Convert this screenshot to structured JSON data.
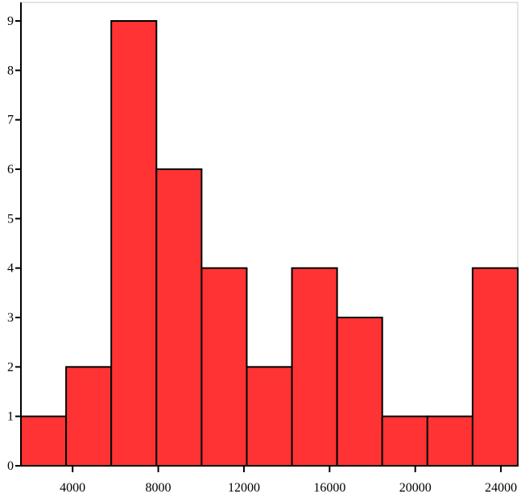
{
  "chart_data": {
    "type": "bar",
    "title": "",
    "xlabel": "",
    "ylabel": "",
    "bar_color": "#ff3333",
    "bar_stroke": "#000000",
    "bins": [
      {
        "start": 1587,
        "end": 3696,
        "count": 1
      },
      {
        "start": 3696,
        "end": 5805,
        "count": 2
      },
      {
        "start": 5805,
        "end": 7914,
        "count": 9
      },
      {
        "start": 7914,
        "end": 10023,
        "count": 6
      },
      {
        "start": 10023,
        "end": 12132,
        "count": 4
      },
      {
        "start": 12132,
        "end": 14241,
        "count": 2
      },
      {
        "start": 14241,
        "end": 16350,
        "count": 4
      },
      {
        "start": 16350,
        "end": 18459,
        "count": 3
      },
      {
        "start": 18459,
        "end": 20568,
        "count": 1
      },
      {
        "start": 20568,
        "end": 22677,
        "count": 1
      },
      {
        "start": 22677,
        "end": 24786,
        "count": 4
      }
    ],
    "xlim": [
      1587,
      24786
    ],
    "ylim": [
      0,
      9
    ],
    "x_ticks": [
      4000,
      8000,
      12000,
      16000,
      20000,
      24000
    ],
    "x_tick_labels": [
      "4000",
      "8000",
      "12000",
      "16000",
      "20000",
      "24000"
    ],
    "y_ticks": [
      0,
      1,
      2,
      3,
      4,
      5,
      6,
      7,
      8,
      9
    ],
    "y_tick_labels": [
      "0",
      "1",
      "2",
      "3",
      "4",
      "5",
      "6",
      "7",
      "8",
      "9"
    ],
    "grid": false,
    "legend": false
  }
}
